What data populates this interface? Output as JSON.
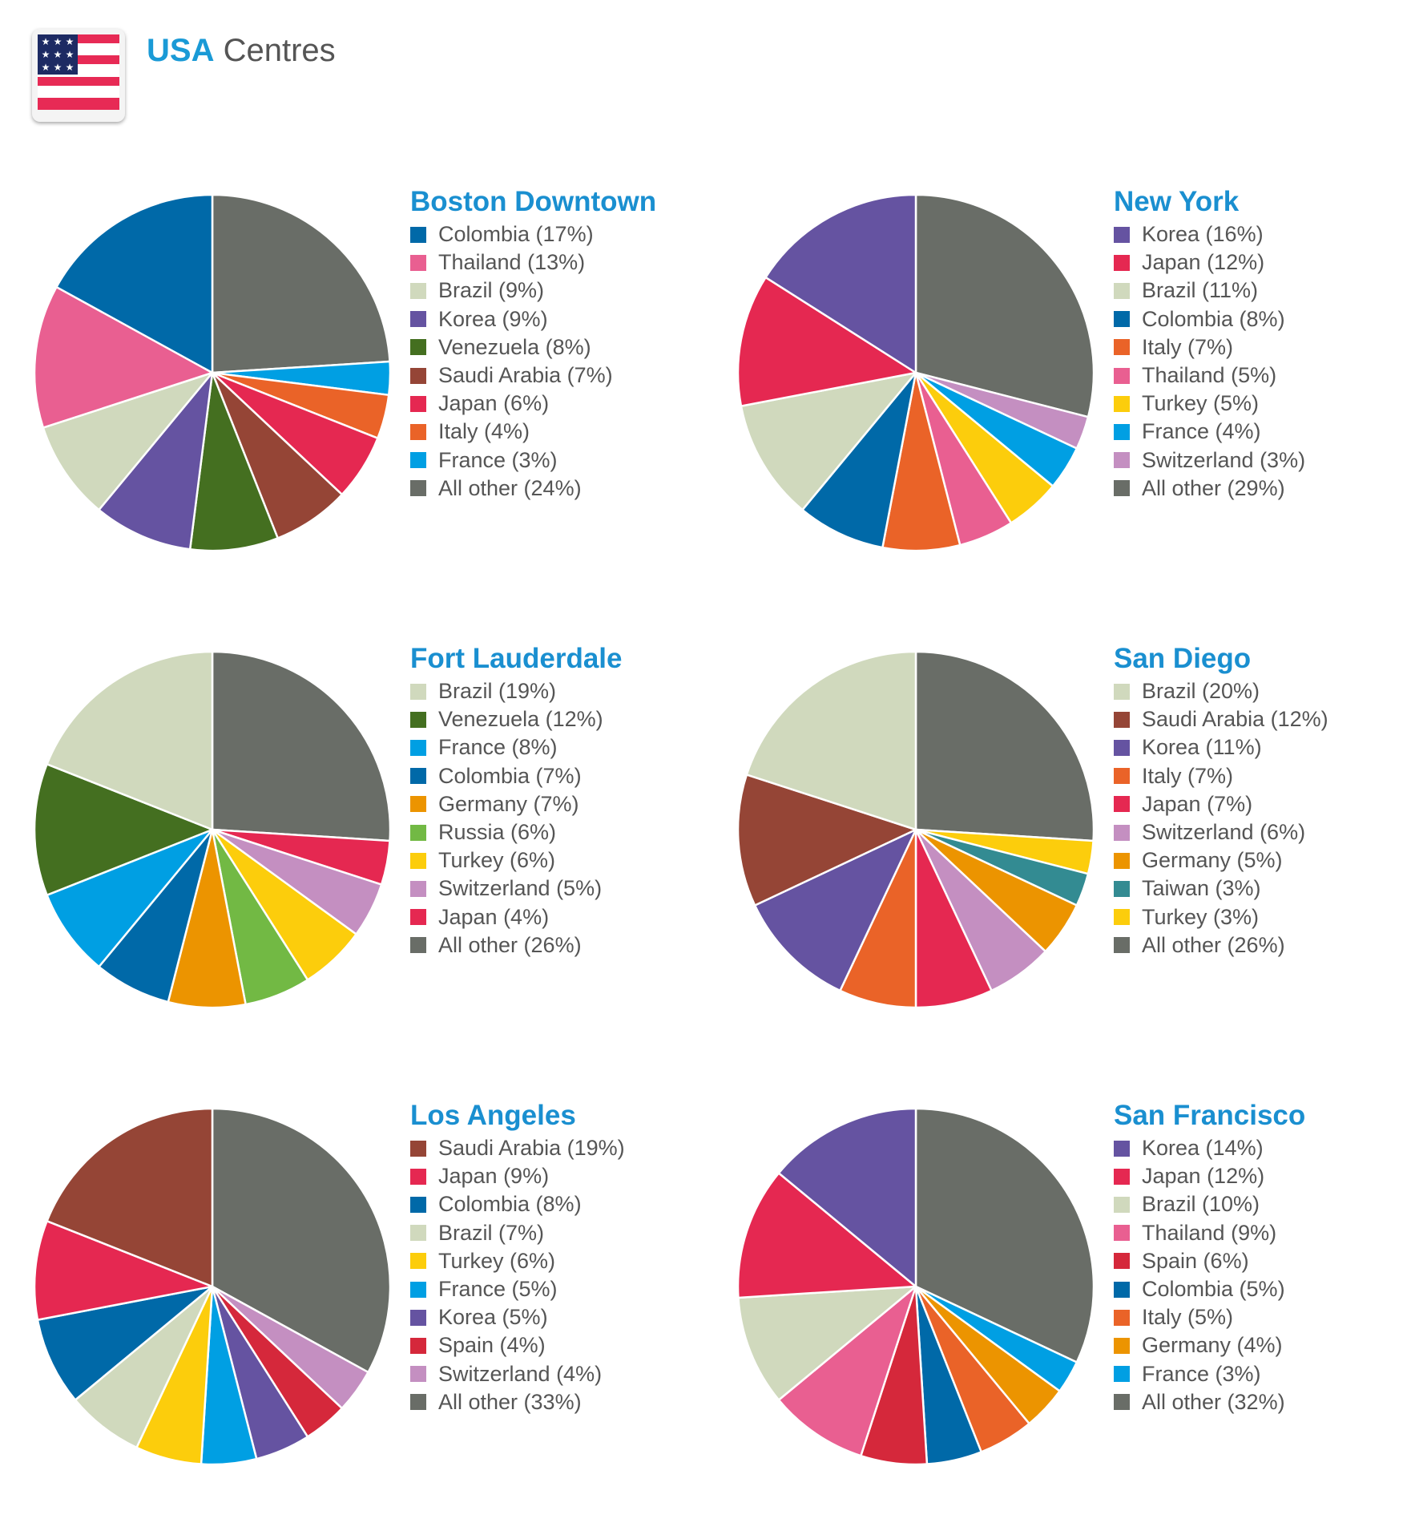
{
  "header": {
    "title_accent": "USA",
    "title_rest": "Centres",
    "flag_icon": "usa-flag-icon"
  },
  "colors": {
    "Colombia": "#0069a8",
    "Thailand": "#e95f91",
    "Brazil": "#d0d9bd",
    "Korea": "#6553a1",
    "Venezuela": "#446f20",
    "Saudi Arabia": "#954536",
    "Japan": "#e52851",
    "Italy": "#ea6328",
    "France": "#009fe3",
    "All other": "#696d67",
    "Turkey": "#fccd0c",
    "Switzerland": "#c48fc1",
    "Germany": "#ec9400",
    "Russia": "#72b944",
    "Taiwan": "#338b92",
    "Spain": "#d5283b"
  },
  "chart_data": [
    {
      "type": "pie",
      "title": "Boston Downtown",
      "labels": [
        "Colombia",
        "Thailand",
        "Brazil",
        "Korea",
        "Venezuela",
        "Saudi Arabia",
        "Japan",
        "Italy",
        "France",
        "All other"
      ],
      "values": [
        17,
        13,
        9,
        9,
        8,
        7,
        6,
        4,
        3,
        24
      ],
      "legend": [
        "Colombia (17%)",
        "Thailand (13%)",
        "Brazil (9%)",
        "Korea (9%)",
        "Venezuela (8%)",
        "Saudi Arabia (7%)",
        "Japan (6%)",
        "Italy (4%)",
        "France (3%)",
        "All other (24%)"
      ]
    },
    {
      "type": "pie",
      "title": "New York",
      "labels": [
        "Korea",
        "Japan",
        "Brazil",
        "Colombia",
        "Italy",
        "Thailand",
        "Turkey",
        "France",
        "Switzerland",
        "All other"
      ],
      "values": [
        16,
        12,
        11,
        8,
        7,
        5,
        5,
        4,
        3,
        29
      ],
      "legend": [
        "Korea (16%)",
        "Japan (12%)",
        "Brazil (11%)",
        "Colombia (8%)",
        "Italy (7%)",
        "Thailand (5%)",
        "Turkey (5%)",
        "France (4%)",
        "Switzerland (3%)",
        "All other (29%)"
      ]
    },
    {
      "type": "pie",
      "title": "Fort Lauderdale",
      "labels": [
        "Brazil",
        "Venezuela",
        "France",
        "Colombia",
        "Germany",
        "Russia",
        "Turkey",
        "Switzerland",
        "Japan",
        "All other"
      ],
      "values": [
        19,
        12,
        8,
        7,
        7,
        6,
        6,
        5,
        4,
        26
      ],
      "legend": [
        "Brazil (19%)",
        "Venezuela (12%)",
        "France (8%)",
        "Colombia (7%)",
        "Germany (7%)",
        "Russia (6%)",
        "Turkey (6%)",
        "Switzerland (5%)",
        "Japan (4%)",
        "All other (26%)"
      ]
    },
    {
      "type": "pie",
      "title": "San Diego",
      "labels": [
        "Brazil",
        "Saudi Arabia",
        "Korea",
        "Italy",
        "Japan",
        "Switzerland",
        "Germany",
        "Taiwan",
        "Turkey",
        "All other"
      ],
      "values": [
        20,
        12,
        11,
        7,
        7,
        6,
        5,
        3,
        3,
        26
      ],
      "legend": [
        "Brazil (20%)",
        "Saudi Arabia (12%)",
        "Korea (11%)",
        "Italy (7%)",
        "Japan (7%)",
        "Switzerland (6%)",
        "Germany (5%)",
        "Taiwan (3%)",
        "Turkey (3%)",
        "All other (26%)"
      ]
    },
    {
      "type": "pie",
      "title": "Los Angeles",
      "labels": [
        "Saudi Arabia",
        "Japan",
        "Colombia",
        "Brazil",
        "Turkey",
        "France",
        "Korea",
        "Spain",
        "Switzerland",
        "All other"
      ],
      "values": [
        19,
        9,
        8,
        7,
        6,
        5,
        5,
        4,
        4,
        33
      ],
      "legend": [
        "Saudi Arabia (19%)",
        "Japan (9%)",
        "Colombia (8%)",
        "Brazil (7%)",
        "Turkey (6%)",
        "France (5%)",
        "Korea (5%)",
        "Spain (4%)",
        "Switzerland (4%)",
        "All other (33%)"
      ]
    },
    {
      "type": "pie",
      "title": "San Francisco",
      "labels": [
        "Korea",
        "Japan",
        "Brazil",
        "Thailand",
        "Spain",
        "Colombia",
        "Italy",
        "Germany",
        "France",
        "All other"
      ],
      "values": [
        14,
        12,
        10,
        9,
        6,
        5,
        5,
        4,
        3,
        32
      ],
      "legend": [
        "Korea (14%)",
        "Japan (12%)",
        "Brazil (10%)",
        "Thailand (9%)",
        "Spain (6%)",
        "Colombia (5%)",
        "Italy (5%)",
        "Germany (4%)",
        "France (3%)",
        "All other (32%)"
      ]
    }
  ]
}
